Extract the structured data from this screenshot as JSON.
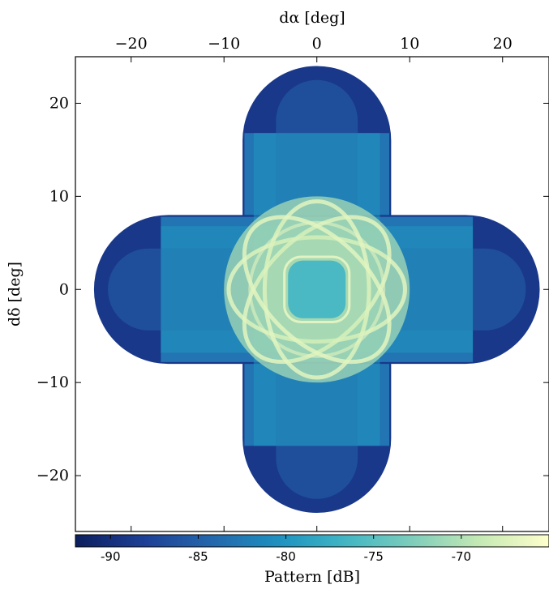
{
  "chart_data": {
    "type": "heatmap",
    "xlabel": "dα [deg]",
    "ylabel": "dδ [deg]",
    "xlim": [
      -26,
      25
    ],
    "ylim": [
      -26,
      25
    ],
    "x_ticks": [
      -20,
      -10,
      0,
      10,
      20
    ],
    "x_tick_labels": [
      "−20",
      "−10",
      "0",
      "10",
      "20"
    ],
    "y_ticks": [
      -20,
      -10,
      0,
      10,
      20
    ],
    "y_tick_labels": [
      "−20",
      "−10",
      "0",
      "10",
      "20"
    ],
    "x_axis_position": "top",
    "grid": false,
    "colormap": "YlGnBu_r",
    "colormap_stops": [
      "#0b1f5e",
      "#1d3f96",
      "#2466ab",
      "#1d91c0",
      "#41b6c4",
      "#7fcdbb",
      "#c7e9b4",
      "#ffffcc"
    ],
    "colorbar": {
      "label": "Pattern [dB]",
      "position": "bottom",
      "range": [
        -92,
        -65
      ],
      "ticks": [
        -90,
        -85,
        -80,
        -75,
        -70
      ],
      "tick_labels": [
        "-90",
        "-85",
        "-80",
        "-75",
        "-70"
      ]
    },
    "pattern_description": {
      "shape": "cross formed by four sweeping circular beams",
      "arm_half_width_deg": 8,
      "arm_extent_deg": 24,
      "beam_radius_deg": 8,
      "center_min_dB": -76,
      "ring_peak_dB": -67,
      "arm_level_dB": -80,
      "arm_end_dB": -89
    }
  }
}
